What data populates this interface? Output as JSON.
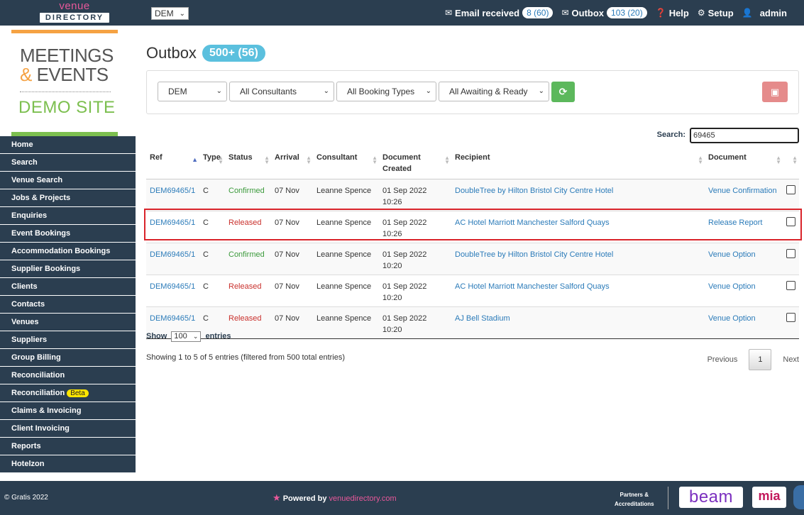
{
  "topbar": {
    "logo_line1": "venue",
    "logo_line2": "DIRECTORY",
    "site_select": "DEM",
    "email_label": "Email received",
    "email_count": "8 (60)",
    "outbox_label": "Outbox",
    "outbox_count": "103 (20)",
    "help_label": "Help",
    "setup_label": "Setup",
    "user_label": "admin"
  },
  "brand": {
    "line1": "MEETINGS",
    "amp": "&",
    "line2": " EVENTS",
    "line3": "DEMO SITE"
  },
  "sidebar": {
    "items": [
      {
        "label": "Home"
      },
      {
        "label": "Search"
      },
      {
        "label": "Venue Search"
      },
      {
        "label": "Jobs & Projects"
      },
      {
        "label": "Enquiries"
      },
      {
        "label": "Event Bookings"
      },
      {
        "label": "Accommodation Bookings"
      },
      {
        "label": "Supplier Bookings"
      },
      {
        "label": "Clients"
      },
      {
        "label": "Contacts"
      },
      {
        "label": "Venues"
      },
      {
        "label": "Suppliers"
      },
      {
        "label": "Group Billing"
      },
      {
        "label": "Reconciliation"
      },
      {
        "label": "Reconciliation",
        "badge": "Beta"
      },
      {
        "label": "Claims & Invoicing"
      },
      {
        "label": "Client Invoicing"
      },
      {
        "label": "Reports"
      },
      {
        "label": "Hotelzon"
      }
    ]
  },
  "main": {
    "title": "Outbox",
    "title_count": "500+ (56)",
    "filters": {
      "site": "DEM",
      "consultants": "All Consultants",
      "booking_types": "All Booking Types",
      "status": "All Awaiting & Ready"
    },
    "search_label": "Search:",
    "search_value": "69465",
    "columns": [
      "Ref",
      "Type",
      "Status",
      "Arrival",
      "Consultant",
      "Document Created",
      "Recipient",
      "Document"
    ],
    "rows": [
      {
        "ref": "DEM69465/1",
        "type": "C",
        "status": "Confirmed",
        "arrival": "07 Nov",
        "consultant": "Leanne Spence",
        "created_date": "01 Sep 2022",
        "created_time": "10:26",
        "recipient": "DoubleTree by Hilton Bristol City Centre Hotel",
        "document": "Venue Confirmation"
      },
      {
        "ref": "DEM69465/1",
        "type": "C",
        "status": "Released",
        "arrival": "07 Nov",
        "consultant": "Leanne Spence",
        "created_date": "01 Sep 2022",
        "created_time": "10:26",
        "recipient": "AC Hotel Marriott Manchester Salford Quays",
        "document": "Release Report"
      },
      {
        "ref": "DEM69465/1",
        "type": "C",
        "status": "Confirmed",
        "arrival": "07 Nov",
        "consultant": "Leanne Spence",
        "created_date": "01 Sep 2022",
        "created_time": "10:20",
        "recipient": "DoubleTree by Hilton Bristol City Centre Hotel",
        "document": "Venue Option"
      },
      {
        "ref": "DEM69465/1",
        "type": "C",
        "status": "Released",
        "arrival": "07 Nov",
        "consultant": "Leanne Spence",
        "created_date": "01 Sep 2022",
        "created_time": "10:20",
        "recipient": "AC Hotel Marriott Manchester Salford Quays",
        "document": "Venue Option"
      },
      {
        "ref": "DEM69465/1",
        "type": "C",
        "status": "Released",
        "arrival": "07 Nov",
        "consultant": "Leanne Spence",
        "created_date": "01 Sep 2022",
        "created_time": "10:20",
        "recipient": "AJ Bell Stadium",
        "document": "Venue Option"
      }
    ],
    "show_label": "Show",
    "show_value": "100",
    "entries_label": "entries",
    "info": "Showing 1 to 5 of 5 entries (filtered from 500 total entries)",
    "pager": {
      "previous": "Previous",
      "current": "1",
      "next": "Next"
    }
  },
  "footer": {
    "copyright": "© Gratis 2022",
    "powered_by": "Powered by",
    "powered_brand": "venuedirectory.com",
    "partners_line1": "Partners &",
    "partners_line2": "Accreditations",
    "beam": "beam",
    "mia": "mia"
  },
  "icons": {
    "email": "envelope-icon",
    "outbox": "envelope-icon",
    "help": "question-circle-icon",
    "setup": "gear-icon",
    "user": "user-icon",
    "refresh": "refresh-icon",
    "archive": "archive-icon"
  },
  "colors": {
    "nav_bg": "#2b3e50",
    "link": "#2b7bb9",
    "confirmed": "#3c9a3c",
    "released": "#c9302c",
    "title_pill": "#5bc0de",
    "refresh_btn": "#5cb85c",
    "archive_btn": "#e58b8b",
    "highlight": "#d9232a"
  }
}
